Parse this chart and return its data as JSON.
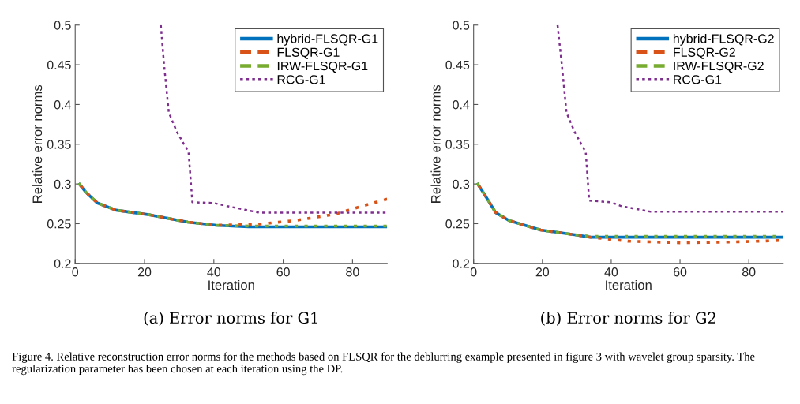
{
  "chart_data": [
    {
      "type": "line",
      "subtitle": "(a) Error norms for G1",
      "xlabel": "Iteration",
      "ylabel": "Relative error norms",
      "xlim": [
        0,
        90
      ],
      "xticks": [
        0,
        20,
        40,
        60,
        80
      ],
      "ylim": [
        0.2,
        0.5
      ],
      "yticks": [
        0.2,
        0.25,
        0.3,
        0.35,
        0.4,
        0.45,
        0.5
      ],
      "grid": false,
      "legend": "top right",
      "marker": "none",
      "series": [
        {
          "name": "hybrid-FLSQR-G1",
          "color": "#0072bd",
          "line_style": "solid",
          "x": [
            1,
            3,
            6.4,
            11.8,
            21.7,
            32.5,
            40.7,
            50,
            60,
            70,
            80,
            90
          ],
          "values": [
            0.301,
            0.29,
            0.276,
            0.267,
            0.261,
            0.252,
            0.248,
            0.246,
            0.246,
            0.246,
            0.246,
            0.246
          ]
        },
        {
          "name": "FLSQR-G1",
          "color": "#d95319",
          "line_style": "dashed",
          "x": [
            1,
            3,
            6.4,
            11.8,
            21.7,
            32.5,
            40.7,
            52,
            63.5,
            75,
            82.7,
            90
          ],
          "values": [
            0.301,
            0.29,
            0.276,
            0.267,
            0.261,
            0.252,
            0.248,
            0.249,
            0.254,
            0.262,
            0.272,
            0.281
          ]
        },
        {
          "name": "IRW-FLSQR-G1",
          "color": "#77ac30",
          "line_style": "dashed",
          "x": [
            1,
            3,
            6.4,
            11.8,
            21.7,
            32.5,
            40.7,
            50,
            60,
            70,
            80,
            90
          ],
          "values": [
            0.301,
            0.29,
            0.276,
            0.267,
            0.261,
            0.252,
            0.248,
            0.247,
            0.247,
            0.247,
            0.247,
            0.247
          ]
        },
        {
          "name": "RCG-G1",
          "color": "#7e2f8e",
          "line_style": "dotted",
          "x": [
            24.7,
            25.6,
            27,
            29.3,
            32.7,
            33.8,
            40,
            43.9,
            53,
            60,
            70,
            80,
            90
          ],
          "values": [
            0.5,
            0.452,
            0.39,
            0.366,
            0.34,
            0.277,
            0.276,
            0.272,
            0.264,
            0.264,
            0.264,
            0.264,
            0.264
          ]
        }
      ],
      "annotations": [
        "Figure 4. Relative reconstruction error norms for the methods based on FLSQR for the deblurring example presented in figure 3 with wavelet group sparsity. The regularization parameter has been chosen at each iteration using the DP."
      ]
    },
    {
      "type": "line",
      "subtitle": "(b) Error norms for G2",
      "xlabel": "Iteration",
      "ylabel": "Relative error norms",
      "xlim": [
        0,
        90
      ],
      "xticks": [
        0,
        20,
        40,
        60,
        80
      ],
      "ylim": [
        0.2,
        0.5
      ],
      "yticks": [
        0.2,
        0.25,
        0.3,
        0.35,
        0.4,
        0.45,
        0.5
      ],
      "grid": false,
      "legend": "top right",
      "marker": "none",
      "series": [
        {
          "name": "hybrid-FLSQR-G2",
          "color": "#0072bd",
          "line_style": "solid",
          "x": [
            1,
            3,
            6.4,
            10.3,
            19.5,
            29.4,
            34,
            45,
            60,
            75,
            90
          ],
          "values": [
            0.301,
            0.288,
            0.264,
            0.254,
            0.242,
            0.236,
            0.233,
            0.233,
            0.233,
            0.233,
            0.233
          ]
        },
        {
          "name": "FLSQR-G2",
          "color": "#d95319",
          "line_style": "dashed",
          "x": [
            1,
            3,
            6.4,
            10.3,
            19.5,
            29.4,
            34,
            44.8,
            60.2,
            75.4,
            90
          ],
          "values": [
            0.301,
            0.288,
            0.264,
            0.254,
            0.242,
            0.236,
            0.233,
            0.228,
            0.226,
            0.227,
            0.229
          ]
        },
        {
          "name": "IRW-FLSQR-G2",
          "color": "#77ac30",
          "line_style": "dashed",
          "x": [
            1,
            3,
            6.4,
            10.3,
            19.5,
            29.4,
            34,
            45,
            60,
            75,
            90
          ],
          "values": [
            0.301,
            0.288,
            0.264,
            0.254,
            0.242,
            0.236,
            0.234,
            0.234,
            0.234,
            0.234,
            0.234
          ]
        },
        {
          "name": "RCG-G1",
          "color": "#7e2f8e",
          "line_style": "dotted",
          "x": [
            24.4,
            25.6,
            27,
            29.3,
            32.6,
            33.6,
            40,
            43,
            51.5,
            60,
            70,
            80,
            90
          ],
          "values": [
            0.5,
            0.452,
            0.39,
            0.366,
            0.34,
            0.279,
            0.277,
            0.272,
            0.265,
            0.265,
            0.265,
            0.265,
            0.265
          ]
        }
      ]
    }
  ]
}
